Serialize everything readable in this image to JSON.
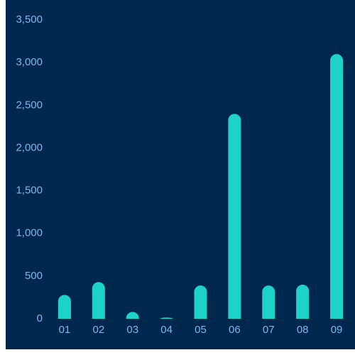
{
  "chart_data": {
    "type": "bar",
    "categories": [
      "01",
      "02",
      "03",
      "04",
      "05",
      "06",
      "07",
      "08",
      "09"
    ],
    "values": [
      280,
      430,
      80,
      15,
      390,
      2400,
      390,
      400,
      3100
    ],
    "color": "#1dd3c8",
    "ylim": [
      0,
      3500
    ],
    "yticks": [
      0,
      500,
      {
        "value": 1000,
        "label": "1,000"
      },
      {
        "value": 1500,
        "label": "1,500"
      },
      {
        "value": 2000,
        "label": "2,000"
      },
      {
        "value": 2500,
        "label": "2,500"
      },
      {
        "value": 3000,
        "label": "3,000"
      },
      {
        "value": 3500,
        "label": "3,500"
      }
    ],
    "grid": false
  }
}
